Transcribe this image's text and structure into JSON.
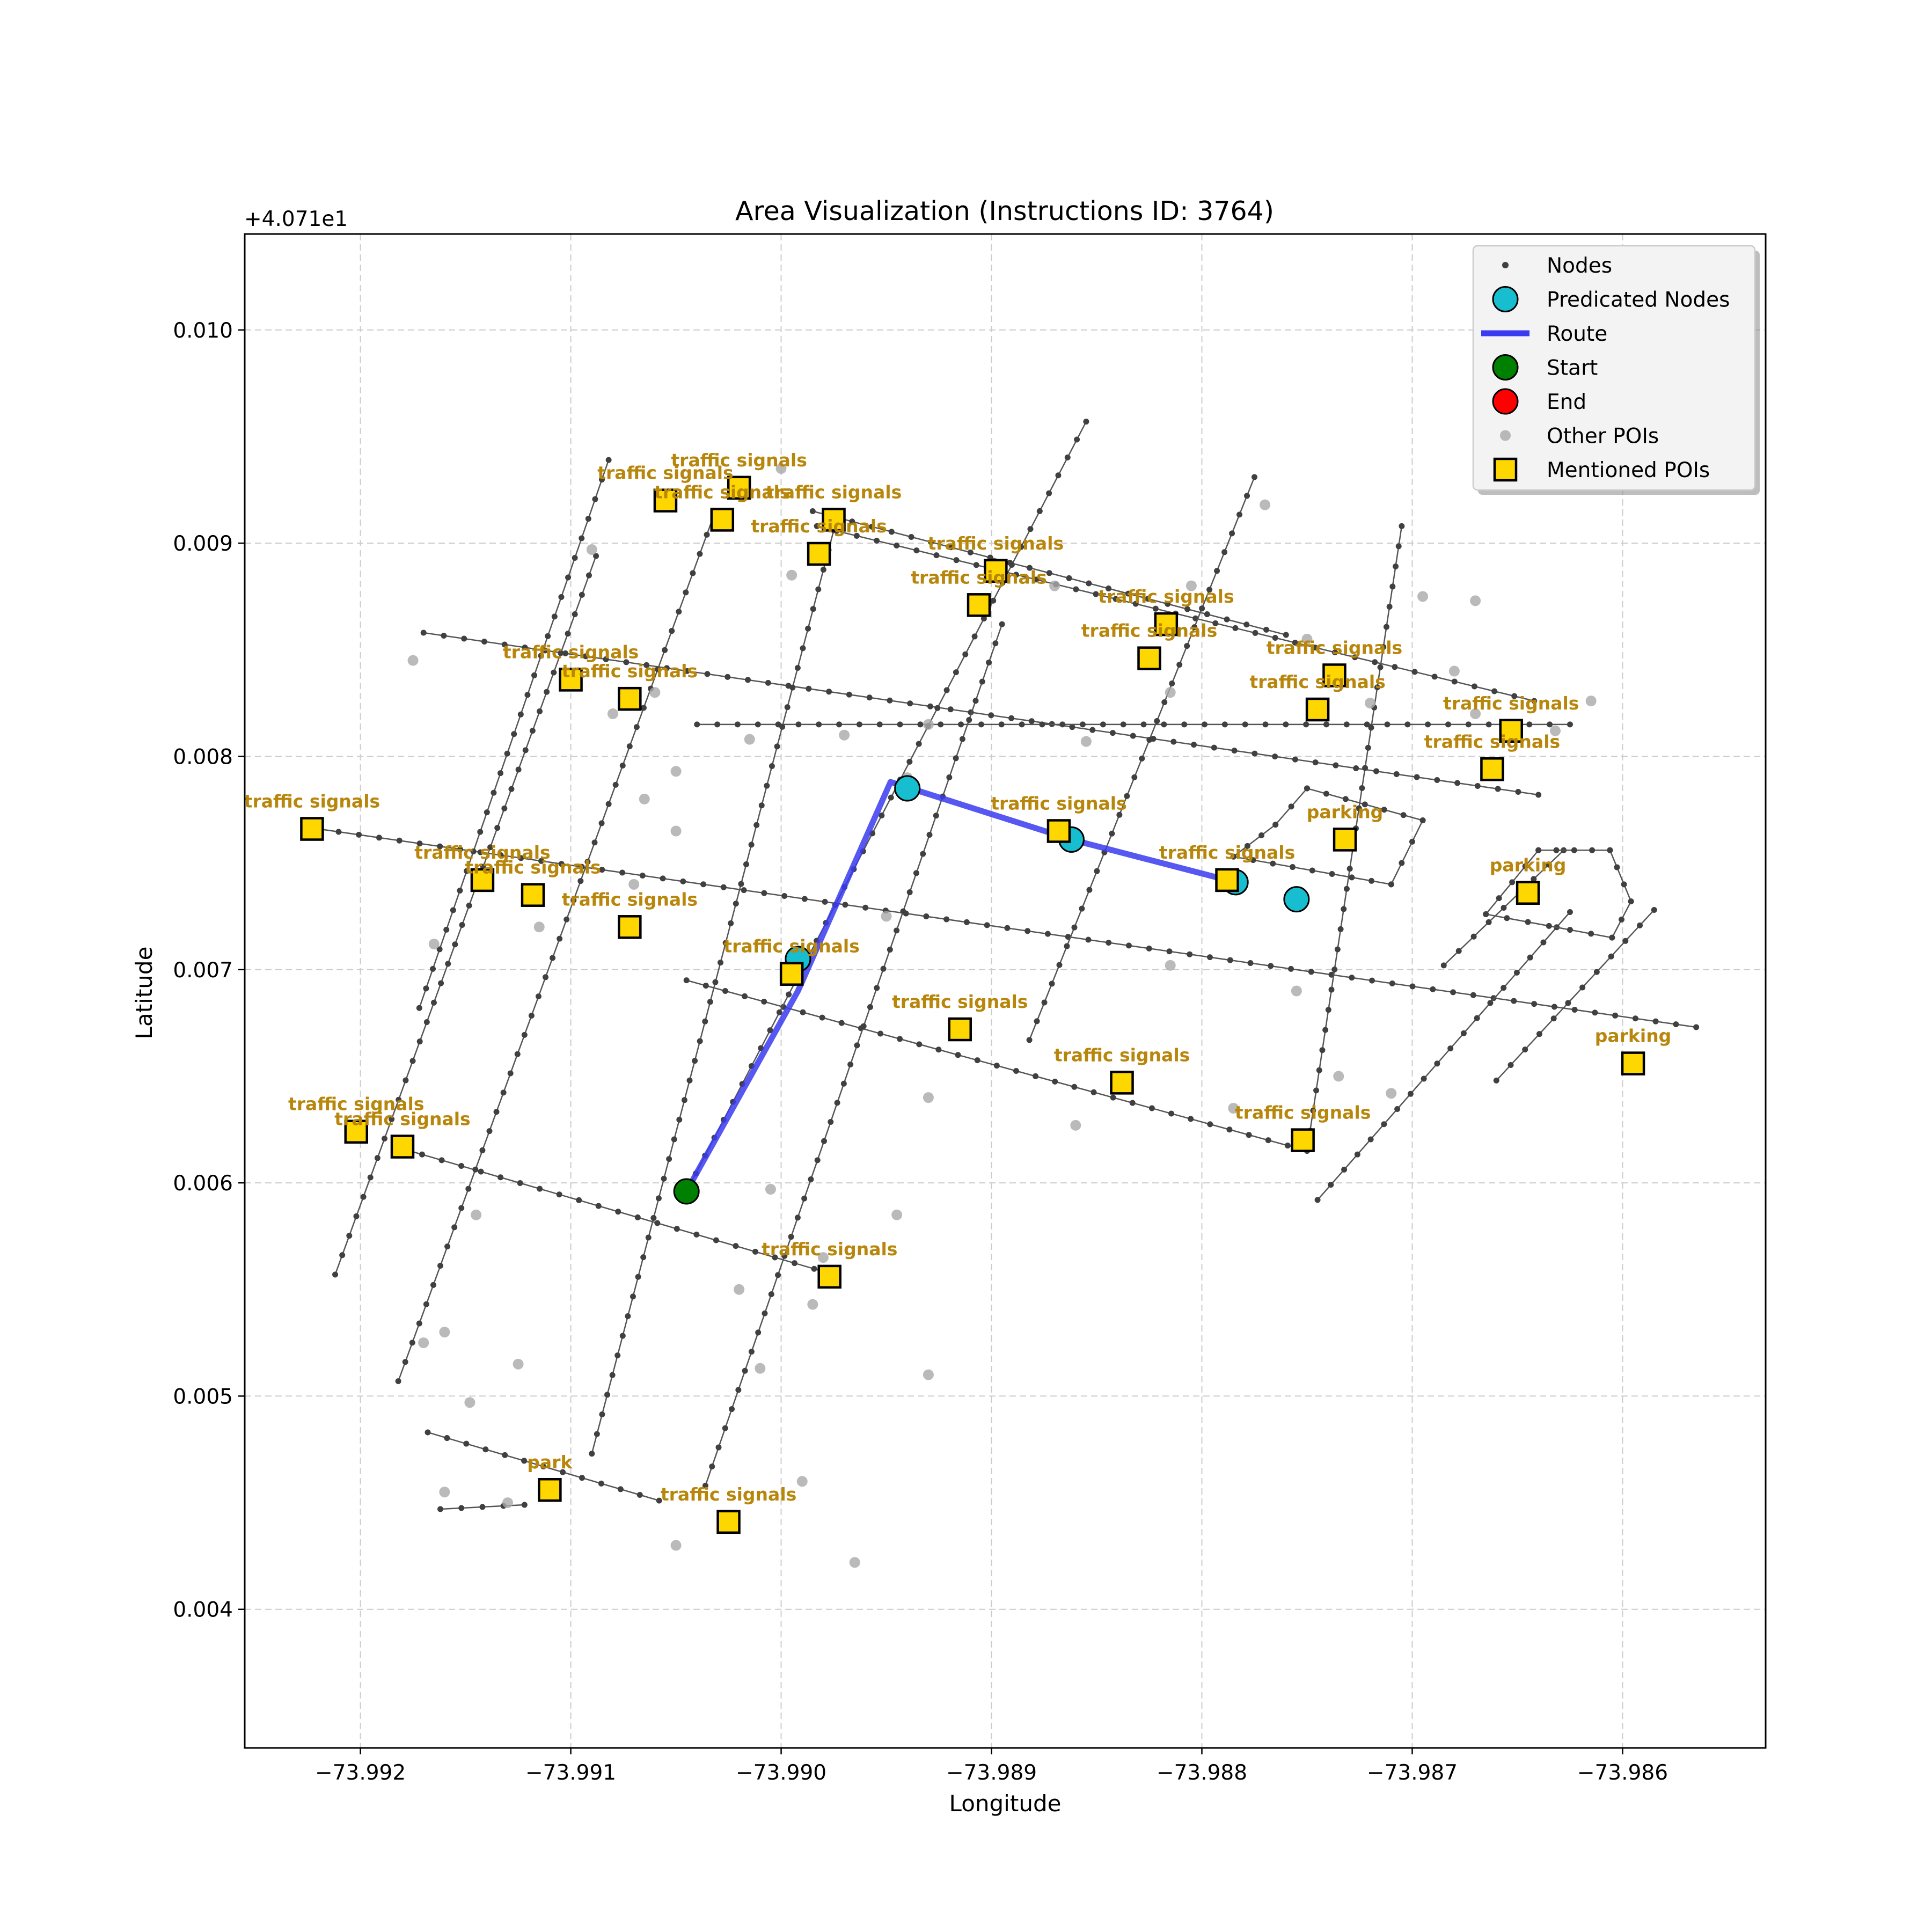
{
  "chart_data": {
    "type": "scatter",
    "title": "Area Visualization (Instructions ID: 3764)",
    "xlabel": "Longitude",
    "ylabel": "Latitude",
    "y_offset_label": "+4.071e1",
    "y_offset": 40.71,
    "xlim": [
      -73.99255,
      -73.98532
    ],
    "ylim": [
      0.00335,
      0.01045
    ],
    "grid": true,
    "x_ticks": [
      -73.992,
      -73.991,
      -73.99,
      -73.989,
      -73.988,
      -73.987,
      -73.986
    ],
    "x_tick_labels": [
      "−73.992",
      "−73.991",
      "−73.990",
      "−73.989",
      "−73.988",
      "−73.987",
      "−73.986"
    ],
    "y_ticks": [
      0.004,
      0.005,
      0.006,
      0.007,
      0.008,
      0.009,
      0.01
    ],
    "y_tick_labels": [
      "0.004",
      "0.005",
      "0.006",
      "0.007",
      "0.008",
      "0.009",
      "0.010"
    ],
    "legend": {
      "placement": "upper right",
      "entries": [
        {
          "label": "Nodes",
          "marker": "small-dot",
          "color": "#404040"
        },
        {
          "label": "Predicated Nodes",
          "marker": "circle",
          "color": "#17becf"
        },
        {
          "label": "Route",
          "marker": "line",
          "color": "#3a3af0"
        },
        {
          "label": "Start",
          "marker": "circle",
          "color": "#008000"
        },
        {
          "label": "End",
          "marker": "circle",
          "color": "#ff0000"
        },
        {
          "label": "Other POIs",
          "marker": "dot",
          "color": "#a9a9a9"
        },
        {
          "label": "Mentioned POIs",
          "marker": "square",
          "color": "#ffd700"
        }
      ]
    },
    "streets": [
      [
        [
          -73.9917,
          0.00858
        ],
        [
          -73.9864,
          0.00782
        ]
      ],
      [
        [
          -73.9904,
          0.00815
        ],
        [
          -73.98625,
          0.00815
        ]
      ],
      [
        [
          -73.9922,
          0.00766
        ],
        [
          -73.98565,
          0.00673
        ]
      ],
      [
        [
          -73.9918,
          0.00616
        ],
        [
          -73.98975,
          0.00557
        ]
      ],
      [
        [
          -73.98983,
          0.00908
        ],
        [
          -73.98642,
          0.00826
        ]
      ],
      [
        [
          -73.98985,
          0.00915
        ],
        [
          -73.9876,
          0.00857
        ]
      ],
      [
        [
          -73.99045,
          0.00695
        ],
        [
          -73.9875,
          0.00615
        ]
      ],
      [
        [
          -73.99168,
          0.00483
        ],
        [
          -73.99058,
          0.00451
        ]
      ],
      [
        [
          -73.99162,
          0.00447
        ],
        [
          -73.99122,
          0.00449
        ]
      ],
      [
        [
          -73.99212,
          0.00557
        ],
        [
          -73.99088,
          0.00894
        ]
      ],
      [
        [
          -73.99172,
          0.00682
        ],
        [
          -73.99082,
          0.00939
        ]
      ],
      [
        [
          -73.99182,
          0.00507
        ],
        [
          -73.99032,
          0.00913
        ]
      ],
      [
        [
          -73.9909,
          0.00473
        ],
        [
          -73.98975,
          0.00906
        ]
      ],
      [
        [
          -73.99045,
          0.00596
        ],
        [
          -73.98855,
          0.00957
        ]
      ],
      [
        [
          -73.99036,
          0.00458
        ],
        [
          -73.98895,
          0.00862
        ]
      ],
      [
        [
          -73.98882,
          0.00667
        ],
        [
          -73.98775,
          0.00931
        ]
      ],
      [
        [
          -73.9875,
          0.00615
        ],
        [
          -73.98705,
          0.00908
        ]
      ],
      [
        [
          -73.98745,
          0.00592
        ],
        [
          -73.98625,
          0.00727
        ]
      ],
      [
        [
          -73.9866,
          0.00648
        ],
        [
          -73.98585,
          0.00728
        ]
      ],
      [
        [
          -73.98685,
          0.00702
        ],
        [
          -73.98628,
          0.00756
        ]
      ]
    ],
    "parking_loops": [
      [
        [
          -73.9875,
          0.00785
        ],
        [
          -73.98695,
          0.0077
        ],
        [
          -73.9871,
          0.0074
        ],
        [
          -73.98785,
          0.00753
        ],
        [
          -73.98765,
          0.00768
        ]
      ],
      [
        [
          -73.9864,
          0.00756
        ],
        [
          -73.98606,
          0.00756
        ],
        [
          -73.98596,
          0.00732
        ],
        [
          -73.98605,
          0.00715
        ],
        [
          -73.98665,
          0.00726
        ]
      ]
    ],
    "other_pois": [
      [
        -73.99,
        0.00935
      ],
      [
        -73.9909,
        0.00897
      ],
      [
        -73.99175,
        0.00845
      ],
      [
        -73.9906,
        0.0083
      ],
      [
        -73.9905,
        0.00793
      ],
      [
        -73.99065,
        0.0078
      ],
      [
        -73.9897,
        0.0081
      ],
      [
        -73.9894,
        0.0079
      ],
      [
        -73.99015,
        0.00808
      ],
      [
        -73.9887,
        0.0088
      ],
      [
        -73.9875,
        0.00855
      ],
      [
        -73.9872,
        0.00825
      ],
      [
        -73.98695,
        0.00875
      ],
      [
        -73.9867,
        0.0082
      ],
      [
        -73.9877,
        0.00918
      ],
      [
        -73.98815,
        0.0083
      ],
      [
        -73.98855,
        0.00807
      ],
      [
        -73.98805,
        0.0088
      ],
      [
        -73.9895,
        0.00725
      ],
      [
        -73.9905,
        0.00765
      ],
      [
        -73.99115,
        0.0072
      ],
      [
        -73.99165,
        0.00712
      ],
      [
        -73.9893,
        0.0064
      ],
      [
        -73.98815,
        0.00702
      ],
      [
        -73.9908,
        0.0082
      ],
      [
        -73.99125,
        0.00515
      ],
      [
        -73.9913,
        0.0045
      ],
      [
        -73.9916,
        0.00455
      ],
      [
        -73.9917,
        0.00525
      ],
      [
        -73.9916,
        0.0053
      ],
      [
        -73.9902,
        0.0055
      ],
      [
        -73.9901,
        0.00513
      ],
      [
        -73.98985,
        0.00543
      ],
      [
        -73.9899,
        0.0046
      ],
      [
        -73.9905,
        0.0043
      ],
      [
        -73.98965,
        0.00422
      ],
      [
        -73.9898,
        0.00565
      ],
      [
        -73.98945,
        0.00585
      ],
      [
        -73.9893,
        0.0051
      ],
      [
        -73.99005,
        0.00597
      ],
      [
        -73.99145,
        0.00585
      ],
      [
        -73.99148,
        0.00497
      ],
      [
        -73.9886,
        0.00627
      ],
      [
        -73.98995,
        0.00885
      ],
      [
        -73.9893,
        0.00815
      ],
      [
        -73.98632,
        0.00812
      ],
      [
        -73.98615,
        0.00826
      ],
      [
        -73.9868,
        0.0084
      ],
      [
        -73.98755,
        0.0069
      ],
      [
        -73.9871,
        0.00642
      ],
      [
        -73.98785,
        0.00635
      ],
      [
        -73.98735,
        0.0065
      ],
      [
        -73.9907,
        0.0074
      ],
      [
        -73.9867,
        0.00873
      ]
    ],
    "route": [
      [
        -73.99045,
        0.00596
      ],
      [
        -73.98992,
        0.0069
      ],
      [
        -73.98948,
        0.00788
      ],
      [
        -73.98862,
        0.00761
      ],
      [
        -73.98784,
        0.00741
      ]
    ],
    "predicated_nodes": [
      [
        -73.9894,
        0.00785
      ],
      [
        -73.98862,
        0.00761
      ],
      [
        -73.98784,
        0.00741
      ],
      [
        -73.98755,
        0.00733
      ],
      [
        -73.98992,
        0.00705
      ]
    ],
    "start": [
      -73.99045,
      0.00596
    ],
    "end": null,
    "mentioned_pois": [
      {
        "label": "traffic signals",
        "x": -73.9902,
        "y": 0.00926
      },
      {
        "label": "traffic signals",
        "x": -73.99055,
        "y": 0.0092
      },
      {
        "label": "traffic signals",
        "x": -73.99028,
        "y": 0.00911
      },
      {
        "label": "traffic signals",
        "x": -73.98975,
        "y": 0.00911
      },
      {
        "label": "traffic signals",
        "x": -73.98982,
        "y": 0.00895
      },
      {
        "label": "traffic signals",
        "x": -73.98898,
        "y": 0.00887
      },
      {
        "label": "traffic signals",
        "x": -73.98906,
        "y": 0.00871
      },
      {
        "label": "traffic signals",
        "x": -73.98817,
        "y": 0.00862
      },
      {
        "label": "traffic signals",
        "x": -73.98825,
        "y": 0.00846
      },
      {
        "label": "traffic signals",
        "x": -73.98737,
        "y": 0.00838
      },
      {
        "label": "traffic signals",
        "x": -73.98745,
        "y": 0.00822
      },
      {
        "label": "traffic signals",
        "x": -73.98653,
        "y": 0.00812
      },
      {
        "label": "traffic signals",
        "x": -73.98662,
        "y": 0.00794
      },
      {
        "label": "traffic signals",
        "x": -73.991,
        "y": 0.00836
      },
      {
        "label": "traffic signals",
        "x": -73.99072,
        "y": 0.00827
      },
      {
        "label": "traffic signals",
        "x": -73.99223,
        "y": 0.00766
      },
      {
        "label": "traffic signals",
        "x": -73.99142,
        "y": 0.00742
      },
      {
        "label": "traffic signals",
        "x": -73.99118,
        "y": 0.00735
      },
      {
        "label": "traffic signals",
        "x": -73.99072,
        "y": 0.0072
      },
      {
        "label": "traffic signals",
        "x": -73.98995,
        "y": 0.00698
      },
      {
        "label": "traffic signals",
        "x": -73.98915,
        "y": 0.00672
      },
      {
        "label": "traffic signals",
        "x": -73.98838,
        "y": 0.00647
      },
      {
        "label": "traffic signals",
        "x": -73.98752,
        "y": 0.0062
      },
      {
        "label": "traffic signals",
        "x": -73.98868,
        "y": 0.00765
      },
      {
        "label": "traffic signals",
        "x": -73.98788,
        "y": 0.00742
      },
      {
        "label": "traffic signals",
        "x": -73.99202,
        "y": 0.00624
      },
      {
        "label": "traffic signals",
        "x": -73.9918,
        "y": 0.00617
      },
      {
        "label": "traffic signals",
        "x": -73.98977,
        "y": 0.00556
      },
      {
        "label": "traffic signals",
        "x": -73.99025,
        "y": 0.00441
      },
      {
        "label": "park",
        "x": -73.9911,
        "y": 0.00456
      },
      {
        "label": "parking",
        "x": -73.98732,
        "y": 0.00761
      },
      {
        "label": "parking",
        "x": -73.98645,
        "y": 0.00736
      },
      {
        "label": "parking",
        "x": -73.98595,
        "y": 0.00656
      }
    ]
  }
}
